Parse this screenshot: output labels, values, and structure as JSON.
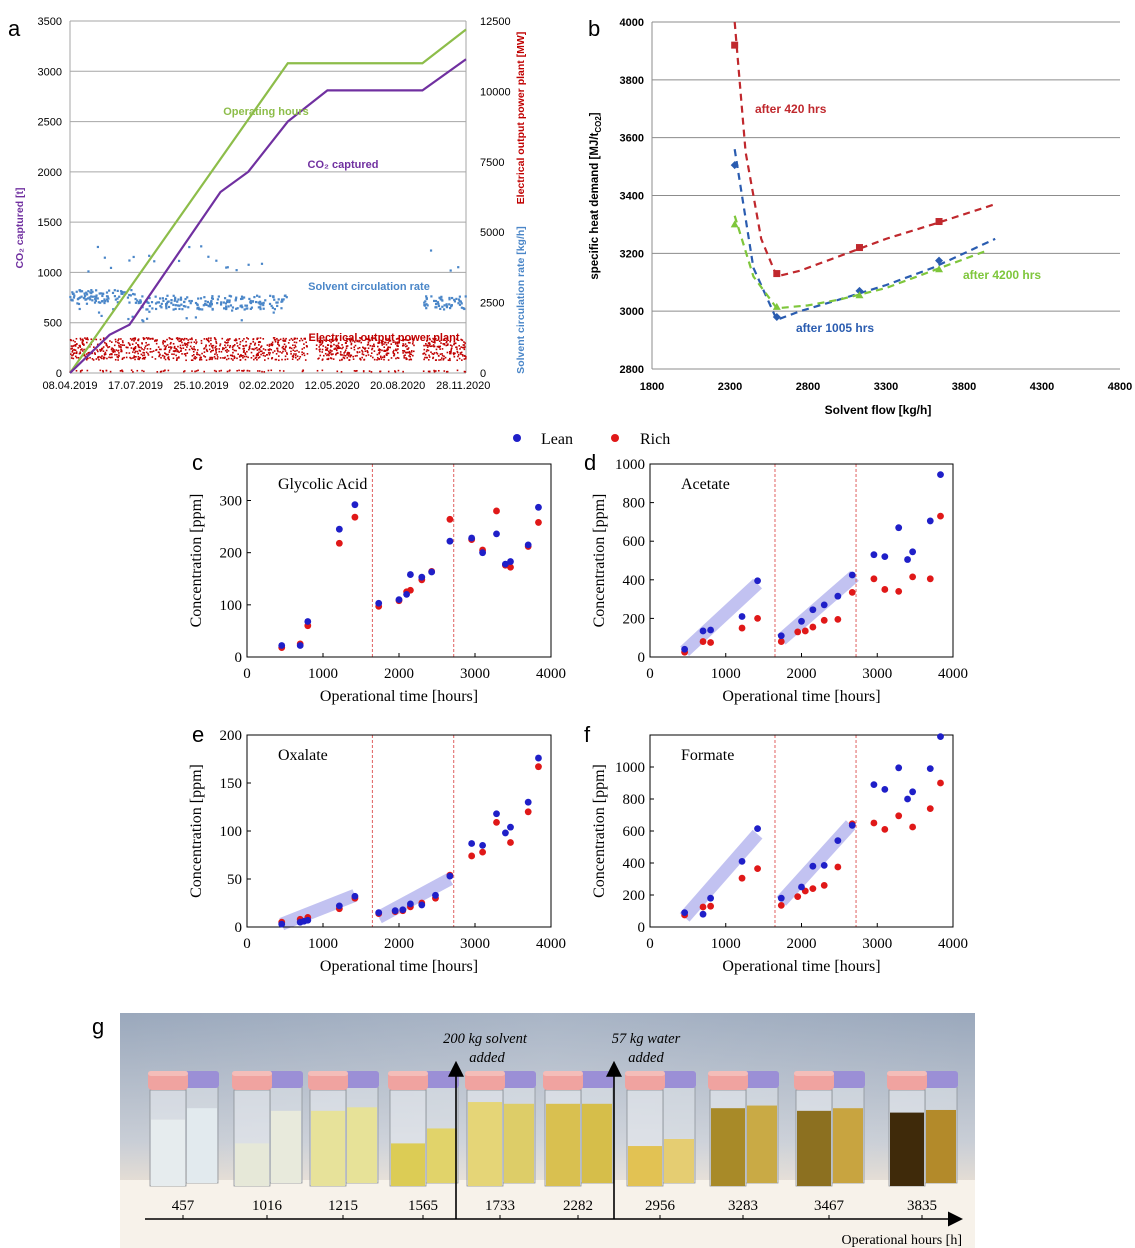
{
  "panel_labels": {
    "a": "a",
    "b": "b",
    "c": "c",
    "d": "d",
    "e": "e",
    "f": "f",
    "g": "g"
  },
  "chart_data": [
    {
      "id": "a",
      "type": "line",
      "xlabel": "",
      "ylabel_left": "CO₂ captured [t]",
      "ylabel_right_1": "Solvent circulation rate [kg/h]",
      "ylabel_right_2": "Electrical output power plant [MW]",
      "x_tick_labels": [
        "08.04.2019",
        "17.07.2019",
        "25.10.2019",
        "02.02.2020",
        "12.05.2020",
        "20.08.2020",
        "28.11.2020"
      ],
      "y_left_ticks": [
        0,
        500,
        1000,
        1500,
        2000,
        2500,
        3000,
        3500
      ],
      "y_right_ticks": [
        0,
        2500,
        5000,
        7500,
        10000,
        12500
      ],
      "ylim_left": [
        0,
        3500
      ],
      "ylim_right": [
        0,
        12500
      ],
      "grid": true,
      "annotations": {
        "operating_hours": "Operating hours",
        "co2_captured": "CO₂ captured",
        "solvent_rate": "Solvent circulation rate",
        "electrical": "Electrical output power plant"
      },
      "series": [
        {
          "name": "Operating hours",
          "color": "#8dbd4a",
          "x": [
            0,
            0.55,
            0.65,
            0.89,
            1.0
          ],
          "y_right": [
            0,
            11000,
            11000,
            11000,
            12200
          ]
        },
        {
          "name": "CO₂ captured",
          "color": "#7030a0",
          "x": [
            0,
            0.1,
            0.15,
            0.38,
            0.45,
            0.55,
            0.65,
            0.89,
            1.0
          ],
          "y_left": [
            0,
            380,
            480,
            1800,
            2000,
            2500,
            2810,
            2810,
            3120
          ]
        },
        {
          "name": "Solvent circulation rate",
          "color": "#4a86c8",
          "typical_y_right": 2500
        },
        {
          "name": "Electrical output power plant",
          "color": "#c00000",
          "typical_y_right": 850
        }
      ]
    },
    {
      "id": "b",
      "type": "line",
      "xlabel": "Solvent flow [kg/h]",
      "ylabel": "specific heat demand [MJ/t",
      "ylabel_sub": "CO2",
      "ylabel_end": "]",
      "xlim": [
        1800,
        4800
      ],
      "ylim": [
        2800,
        4000
      ],
      "x_ticks": [
        1800,
        2300,
        2800,
        3300,
        3800,
        4300,
        4800
      ],
      "y_ticks": [
        2800,
        3000,
        3200,
        3400,
        3600,
        3800,
        4000
      ],
      "grid": true,
      "series": [
        {
          "name": "after 420 hrs",
          "color": "#c0282d",
          "x": [
            2330,
            2600,
            3130,
            3640
          ],
          "y": [
            3920,
            3130,
            3220,
            3310
          ],
          "fit_x": [
            2330,
            2400,
            2500,
            2600,
            2750,
            3000,
            3300,
            3600,
            4000
          ],
          "fit_y": [
            4000,
            3550,
            3250,
            3120,
            3140,
            3190,
            3250,
            3300,
            3370
          ]
        },
        {
          "name": "after 1005 hrs",
          "color": "#2a5cb0",
          "x": [
            2330,
            2600,
            3130,
            3640
          ],
          "y": [
            3505,
            2980,
            3070,
            3175
          ],
          "fit_x": [
            2330,
            2450,
            2600,
            2750,
            3000,
            3300,
            3600,
            4000
          ],
          "fit_y": [
            3560,
            3150,
            2970,
            3000,
            3040,
            3090,
            3150,
            3250
          ]
        },
        {
          "name": "after 4200 hrs",
          "color": "#7ec63b",
          "x": [
            2330,
            2600,
            3130,
            3640
          ],
          "y": [
            3300,
            3015,
            3055,
            3145
          ],
          "fit_x": [
            2330,
            2450,
            2600,
            2800,
            3000,
            3300,
            3600,
            3950
          ],
          "fit_y": [
            3330,
            3120,
            3010,
            3020,
            3040,
            3080,
            3140,
            3210
          ]
        }
      ]
    },
    {
      "id": "c",
      "type": "scatter",
      "title": "Glycolic Acid",
      "xlabel": "Operational time [hours]",
      "ylabel": "Concentration [ppm]",
      "xlim": [
        0,
        4000
      ],
      "ylim": [
        0,
        370
      ],
      "x_ticks": [
        0,
        1000,
        2000,
        3000,
        4000
      ],
      "y_ticks": [
        0,
        100,
        200,
        300
      ],
      "vlines": [
        1650,
        2720
      ],
      "fit_bands": [],
      "series": [
        {
          "name": "Lean",
          "color": "#1f1fc8",
          "x": [
            457,
            700,
            800,
            1215,
            1420,
            1733,
            2000,
            2100,
            2150,
            2300,
            2430,
            2670,
            2956,
            3100,
            3283,
            3400,
            3467,
            3700,
            3835
          ],
          "y": [
            22,
            22,
            68,
            245,
            292,
            103,
            110,
            120,
            158,
            153,
            163,
            222,
            228,
            200,
            236,
            178,
            183,
            215,
            287
          ]
        },
        {
          "name": "Rich",
          "color": "#e01818",
          "x": [
            457,
            700,
            800,
            1215,
            1420,
            1733,
            2000,
            2100,
            2150,
            2300,
            2430,
            2670,
            2956,
            3100,
            3283,
            3400,
            3467,
            3700,
            3835
          ],
          "y": [
            18,
            25,
            60,
            218,
            268,
            97,
            108,
            125,
            128,
            148,
            164,
            264,
            225,
            205,
            280,
            176,
            172,
            212,
            258
          ]
        }
      ]
    },
    {
      "id": "d",
      "type": "scatter",
      "title": "Acetate",
      "xlabel": "Operational time [hours]",
      "ylabel": "Concentration [ppm]",
      "xlim": [
        0,
        4000
      ],
      "ylim": [
        0,
        1000
      ],
      "x_ticks": [
        0,
        1000,
        2000,
        3000,
        4000
      ],
      "y_ticks": [
        0,
        200,
        400,
        600,
        800,
        1000
      ],
      "vlines": [
        1650,
        2720
      ],
      "fit_bands": [
        [
          457,
          30,
          1420,
          380
        ],
        [
          1733,
          90,
          2700,
          420
        ]
      ],
      "series": [
        {
          "name": "Lean",
          "color": "#1f1fc8",
          "x": [
            457,
            700,
            800,
            1215,
            1420,
            1733,
            2000,
            2150,
            2300,
            2480,
            2670,
            2956,
            3100,
            3283,
            3400,
            3467,
            3700,
            3835
          ],
          "y": [
            40,
            135,
            140,
            210,
            395,
            110,
            185,
            245,
            270,
            315,
            425,
            530,
            520,
            670,
            505,
            545,
            705,
            945
          ]
        },
        {
          "name": "Rich",
          "color": "#e01818",
          "x": [
            457,
            700,
            800,
            1215,
            1420,
            1733,
            1950,
            2050,
            2150,
            2300,
            2480,
            2670,
            2956,
            3100,
            3283,
            3467,
            3700,
            3835
          ],
          "y": [
            25,
            80,
            75,
            150,
            200,
            80,
            130,
            135,
            155,
            190,
            195,
            335,
            405,
            350,
            340,
            415,
            405,
            730
          ]
        }
      ]
    },
    {
      "id": "e",
      "type": "scatter",
      "title": "Oxalate",
      "xlabel": "Operational time [hours]",
      "ylabel": "Concentration [ppm]",
      "xlim": [
        0,
        4000
      ],
      "ylim": [
        0,
        200
      ],
      "x_ticks": [
        0,
        1000,
        2000,
        3000,
        4000
      ],
      "y_ticks": [
        0,
        50,
        100,
        150,
        200
      ],
      "vlines": [
        1650,
        2720
      ],
      "fit_bands": [
        [
          457,
          3,
          1420,
          33
        ],
        [
          1733,
          10,
          2670,
          50
        ]
      ],
      "series": [
        {
          "name": "Lean",
          "color": "#1f1fc8",
          "x": [
            457,
            700,
            750,
            800,
            1215,
            1420,
            1733,
            1950,
            2050,
            2150,
            2300,
            2480,
            2670,
            2956,
            3100,
            3283,
            3400,
            3467,
            3700,
            3835
          ],
          "y": [
            3,
            5,
            6,
            7,
            22,
            32,
            15,
            17,
            18,
            24,
            23,
            33,
            53,
            87,
            85,
            118,
            98,
            104,
            130,
            176
          ],
          "z": 0
        },
        {
          "name": "Rich",
          "color": "#e01818",
          "x": [
            457,
            700,
            800,
            1215,
            1420,
            1733,
            1950,
            2050,
            2150,
            2300,
            2480,
            2670,
            2956,
            3100,
            3283,
            3467,
            3700,
            3835
          ],
          "y": [
            5,
            8,
            10,
            19,
            30,
            14,
            16,
            17,
            21,
            25,
            30,
            54,
            74,
            78,
            109,
            88,
            120,
            167
          ]
        }
      ]
    },
    {
      "id": "f",
      "type": "scatter",
      "title": "Formate",
      "xlabel": "Operational time [hours]",
      "ylabel": "Concentration [ppm]",
      "xlim": [
        0,
        4000
      ],
      "ylim": [
        0,
        1200
      ],
      "x_ticks": [
        0,
        1000,
        2000,
        3000,
        4000
      ],
      "y_ticks": [
        0,
        200,
        400,
        600,
        800,
        1000
      ],
      "vlines": [
        1650,
        2720
      ],
      "fit_bands": [
        [
          457,
          60,
          1420,
          580
        ],
        [
          1733,
          160,
          2650,
          640
        ]
      ],
      "series": [
        {
          "name": "Lean",
          "color": "#1f1fc8",
          "x": [
            457,
            700,
            800,
            1215,
            1420,
            1733,
            2000,
            2150,
            2300,
            2480,
            2670,
            2956,
            3100,
            3283,
            3400,
            3467,
            3700,
            3835
          ],
          "y": [
            90,
            80,
            180,
            410,
            615,
            180,
            250,
            380,
            385,
            540,
            635,
            890,
            860,
            995,
            800,
            845,
            990,
            1190
          ]
        },
        {
          "name": "Rich",
          "color": "#e01818",
          "x": [
            457,
            700,
            800,
            1215,
            1420,
            1733,
            1950,
            2050,
            2150,
            2300,
            2480,
            2670,
            2956,
            3100,
            3283,
            3467,
            3700,
            3835
          ],
          "y": [
            75,
            125,
            130,
            305,
            365,
            135,
            190,
            225,
            240,
            260,
            375,
            645,
            650,
            610,
            695,
            625,
            740,
            900
          ]
        }
      ]
    }
  ],
  "legend": {
    "lean": "Lean",
    "rich": "Rich"
  },
  "panel_g": {
    "annotation_1_line1": "200 kg solvent",
    "annotation_1_line2": "added",
    "annotation_2_line1": "57 kg water",
    "annotation_2_line2": "added",
    "axis_label": "Operational hours [h]",
    "samples": [
      {
        "hours": "457",
        "color1": "#e6ecee",
        "color2": "#e2eaee",
        "level1": 0.72,
        "level2": 0.85
      },
      {
        "hours": "1016",
        "color1": "#e6e8d8",
        "color2": "#e8eadc",
        "level1": 0.45,
        "level2": 0.82
      },
      {
        "hours": "1215",
        "color1": "#e7e29a",
        "color2": "#e7e298",
        "level1": 0.82,
        "level2": 0.86
      },
      {
        "hours": "1565",
        "color1": "#dccc55",
        "color2": "#e1d36a",
        "level1": 0.45,
        "level2": 0.62
      },
      {
        "hours": "1733",
        "color1": "#e5d577",
        "color2": "#ddcd68",
        "level1": 0.92,
        "level2": 0.9
      },
      {
        "hours": "2282",
        "color1": "#d9c050",
        "color2": "#d6be4a",
        "level1": 0.9,
        "level2": 0.9
      },
      {
        "hours": "2956",
        "color1": "#e2c253",
        "color2": "#e5cd72",
        "level1": 0.42,
        "level2": 0.5
      },
      {
        "hours": "3283",
        "color1": "#a88a28",
        "color2": "#c9aa45",
        "level1": 0.85,
        "level2": 0.88
      },
      {
        "hours": "3467",
        "color1": "#8c7020",
        "color2": "#c8a440",
        "level1": 0.82,
        "level2": 0.85
      },
      {
        "hours": "3835",
        "color1": "#3f2a0a",
        "color2": "#b38a2a",
        "level1": 0.8,
        "level2": 0.83
      }
    ]
  }
}
